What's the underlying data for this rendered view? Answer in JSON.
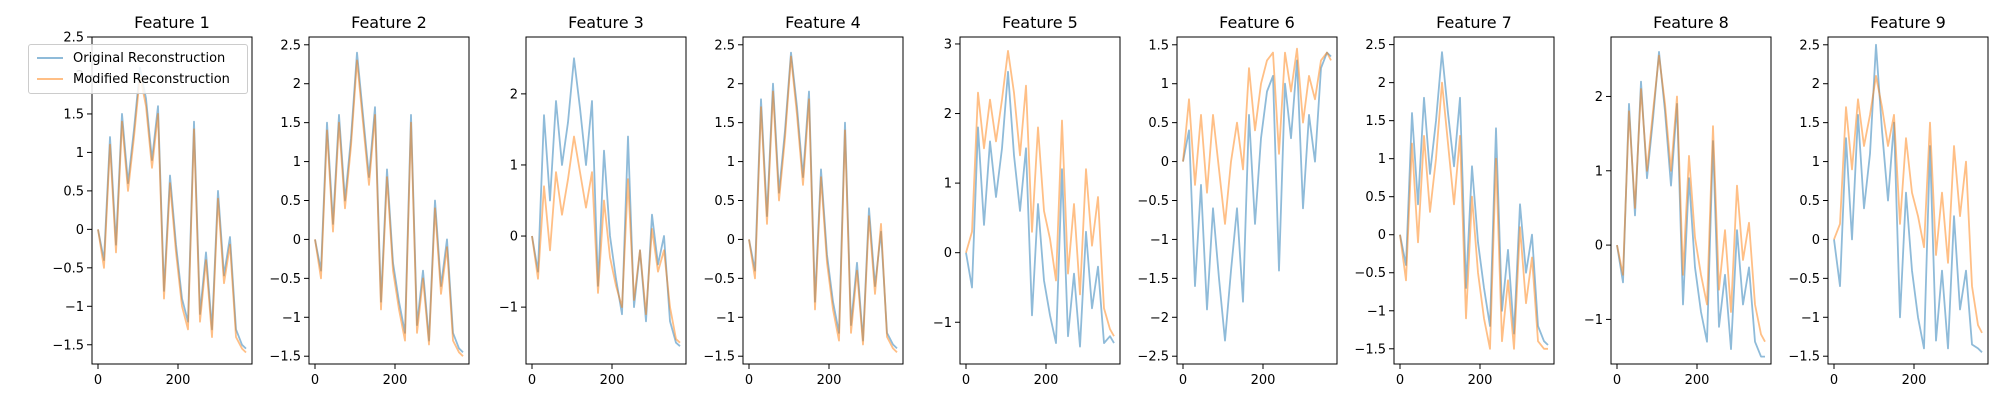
{
  "colors": {
    "original": "#1f77b4",
    "modified": "#ff7f0e",
    "line_alpha": 0.5
  },
  "legend": {
    "placement": "upper-left of first panel",
    "original_label": "Original Reconstruction",
    "modified_label": "Modified Reconstruction"
  },
  "chart_data": [
    {
      "type": "line",
      "title": "Feature 1",
      "xlabel": "",
      "ylabel": "",
      "xlim": [
        -15,
        385
      ],
      "ylim": [
        -1.75,
        2.5
      ],
      "xticks": [
        0,
        200
      ],
      "yticks": [
        -1.5,
        -1.0,
        -0.5,
        0.0,
        0.5,
        1.0,
        1.5,
        2.0,
        2.5
      ],
      "x": [
        0,
        15,
        30,
        45,
        60,
        75,
        90,
        105,
        120,
        135,
        150,
        165,
        180,
        195,
        210,
        225,
        240,
        255,
        270,
        285,
        300,
        315,
        330,
        345,
        360,
        370
      ],
      "series": [
        {
          "name": "Original Reconstruction",
          "values": [
            0.0,
            -0.4,
            1.2,
            -0.2,
            1.5,
            0.6,
            1.3,
            2.1,
            1.7,
            0.9,
            1.6,
            -0.8,
            0.7,
            -0.2,
            -0.9,
            -1.2,
            1.4,
            -1.1,
            -0.3,
            -1.3,
            0.5,
            -0.6,
            -0.1,
            -1.3,
            -1.5,
            -1.55
          ]
        },
        {
          "name": "Modified Reconstruction",
          "values": [
            0.0,
            -0.5,
            1.1,
            -0.3,
            1.4,
            0.5,
            1.2,
            2.0,
            1.6,
            0.8,
            1.5,
            -0.9,
            0.6,
            -0.3,
            -1.0,
            -1.3,
            1.3,
            -1.2,
            -0.4,
            -1.4,
            0.4,
            -0.7,
            -0.2,
            -1.4,
            -1.55,
            -1.6
          ]
        }
      ]
    },
    {
      "type": "line",
      "title": "Feature 2",
      "xlabel": "",
      "ylabel": "",
      "xlim": [
        -15,
        385
      ],
      "ylim": [
        -1.6,
        2.6
      ],
      "xticks": [
        0,
        200
      ],
      "yticks": [
        -1.5,
        -1.0,
        -0.5,
        0.0,
        0.5,
        1.0,
        1.5,
        2.0,
        2.5
      ],
      "x": [
        0,
        15,
        30,
        45,
        60,
        75,
        90,
        105,
        120,
        135,
        150,
        165,
        180,
        195,
        210,
        225,
        240,
        255,
        270,
        285,
        300,
        315,
        330,
        345,
        360,
        370
      ],
      "series": [
        {
          "name": "Original Reconstruction",
          "values": [
            0.0,
            -0.4,
            1.5,
            0.2,
            1.6,
            0.5,
            1.3,
            2.4,
            1.6,
            0.8,
            1.7,
            -0.8,
            0.9,
            -0.3,
            -0.8,
            -1.2,
            1.6,
            -1.1,
            -0.4,
            -1.3,
            0.5,
            -0.6,
            0.0,
            -1.2,
            -1.4,
            -1.45
          ]
        },
        {
          "name": "Modified Reconstruction",
          "values": [
            0.0,
            -0.5,
            1.4,
            0.1,
            1.5,
            0.4,
            1.2,
            2.3,
            1.5,
            0.7,
            1.6,
            -0.9,
            0.8,
            -0.4,
            -0.9,
            -1.3,
            1.5,
            -1.2,
            -0.5,
            -1.35,
            0.4,
            -0.7,
            -0.1,
            -1.3,
            -1.45,
            -1.5
          ]
        }
      ]
    },
    {
      "type": "line",
      "title": "Feature 3",
      "xlabel": "",
      "ylabel": "",
      "xlim": [
        -15,
        385
      ],
      "ylim": [
        -1.8,
        2.8
      ],
      "xticks": [
        0,
        200
      ],
      "yticks": [
        -1,
        0,
        1,
        2
      ],
      "x": [
        0,
        15,
        30,
        45,
        60,
        75,
        90,
        105,
        120,
        135,
        150,
        165,
        180,
        195,
        210,
        225,
        240,
        255,
        270,
        285,
        300,
        315,
        330,
        345,
        360,
        370
      ],
      "series": [
        {
          "name": "Original Reconstruction",
          "values": [
            0.0,
            -0.5,
            1.7,
            0.5,
            1.9,
            1.0,
            1.6,
            2.5,
            1.8,
            1.0,
            1.9,
            -0.7,
            1.2,
            0.0,
            -0.6,
            -1.1,
            1.4,
            -1.0,
            -0.2,
            -1.2,
            0.3,
            -0.4,
            0.0,
            -1.2,
            -1.5,
            -1.55
          ]
        },
        {
          "name": "Modified Reconstruction",
          "values": [
            0.0,
            -0.6,
            0.7,
            -0.2,
            0.9,
            0.3,
            0.8,
            1.4,
            0.9,
            0.4,
            0.9,
            -0.8,
            0.5,
            -0.3,
            -0.7,
            -1.0,
            0.8,
            -0.9,
            -0.2,
            -1.1,
            0.1,
            -0.5,
            -0.2,
            -1.0,
            -1.45,
            -1.5
          ]
        }
      ]
    },
    {
      "type": "line",
      "title": "Feature 4",
      "xlabel": "",
      "ylabel": "",
      "xlim": [
        -15,
        385
      ],
      "ylim": [
        -1.6,
        2.6
      ],
      "xticks": [
        0,
        200
      ],
      "yticks": [
        -1.5,
        -1.0,
        -0.5,
        0.0,
        0.5,
        1.0,
        1.5,
        2.0,
        2.5
      ],
      "x": [
        0,
        15,
        30,
        45,
        60,
        75,
        90,
        105,
        120,
        135,
        150,
        165,
        180,
        195,
        210,
        225,
        240,
        255,
        270,
        285,
        300,
        315,
        330,
        345,
        360,
        370
      ],
      "series": [
        {
          "name": "Original Reconstruction",
          "values": [
            0.0,
            -0.4,
            1.8,
            0.3,
            2.0,
            0.6,
            1.4,
            2.4,
            1.7,
            0.8,
            1.9,
            -0.8,
            0.9,
            -0.2,
            -0.8,
            -1.2,
            1.5,
            -1.1,
            -0.3,
            -1.3,
            0.4,
            -0.6,
            0.1,
            -1.2,
            -1.35,
            -1.4
          ]
        },
        {
          "name": "Modified Reconstruction",
          "values": [
            0.0,
            -0.5,
            1.7,
            0.2,
            1.9,
            0.5,
            1.3,
            2.35,
            1.6,
            0.7,
            1.8,
            -0.9,
            0.8,
            -0.3,
            -0.9,
            -1.3,
            1.4,
            -1.2,
            -0.4,
            -1.35,
            0.3,
            -0.7,
            0.2,
            -1.25,
            -1.4,
            -1.45
          ]
        }
      ]
    },
    {
      "type": "line",
      "title": "Feature 5",
      "xlabel": "",
      "ylabel": "",
      "xlim": [
        -15,
        385
      ],
      "ylim": [
        -1.6,
        3.1
      ],
      "xticks": [
        0,
        200
      ],
      "yticks": [
        -1,
        0,
        1,
        2,
        3
      ],
      "x": [
        0,
        15,
        30,
        45,
        60,
        75,
        90,
        105,
        120,
        135,
        150,
        165,
        180,
        195,
        210,
        225,
        240,
        255,
        270,
        285,
        300,
        315,
        330,
        345,
        360,
        370
      ],
      "series": [
        {
          "name": "Original Reconstruction",
          "values": [
            0.0,
            -0.5,
            1.8,
            0.4,
            1.6,
            0.8,
            1.5,
            2.6,
            1.4,
            0.6,
            1.5,
            -0.9,
            0.7,
            -0.4,
            -0.9,
            -1.3,
            1.2,
            -1.2,
            -0.3,
            -1.35,
            0.3,
            -0.8,
            -0.2,
            -1.3,
            -1.2,
            -1.3
          ]
        },
        {
          "name": "Modified Reconstruction",
          "values": [
            0.0,
            0.3,
            2.3,
            1.5,
            2.2,
            1.6,
            2.2,
            2.9,
            2.3,
            1.4,
            2.4,
            0.3,
            1.8,
            0.6,
            0.2,
            -0.4,
            1.9,
            -0.3,
            0.7,
            -0.6,
            1.2,
            0.1,
            0.8,
            -0.8,
            -1.1,
            -1.2
          ]
        }
      ]
    },
    {
      "type": "line",
      "title": "Feature 6",
      "xlabel": "",
      "ylabel": "",
      "xlim": [
        -15,
        385
      ],
      "ylim": [
        -2.6,
        1.6
      ],
      "xticks": [
        0,
        200
      ],
      "yticks": [
        -2.5,
        -2.0,
        -1.5,
        -1.0,
        -0.5,
        0.0,
        0.5,
        1.0,
        1.5
      ],
      "x": [
        0,
        15,
        30,
        45,
        60,
        75,
        90,
        105,
        120,
        135,
        150,
        165,
        180,
        195,
        210,
        225,
        240,
        255,
        270,
        285,
        300,
        315,
        330,
        345,
        360,
        370
      ],
      "series": [
        {
          "name": "Original Reconstruction",
          "values": [
            0.0,
            0.4,
            -1.6,
            -0.3,
            -1.9,
            -0.6,
            -1.5,
            -2.3,
            -1.4,
            -0.6,
            -1.8,
            0.6,
            -0.8,
            0.3,
            0.9,
            1.1,
            -1.4,
            1.0,
            0.3,
            1.3,
            -0.6,
            0.6,
            0.0,
            1.2,
            1.4,
            1.35
          ]
        },
        {
          "name": "Modified Reconstruction",
          "values": [
            0.0,
            0.8,
            -0.3,
            0.6,
            -0.4,
            0.6,
            -0.1,
            -0.8,
            0.0,
            0.5,
            -0.1,
            1.2,
            0.4,
            1.0,
            1.3,
            1.4,
            0.1,
            1.4,
            0.9,
            1.45,
            0.5,
            1.1,
            0.8,
            1.3,
            1.4,
            1.3
          ]
        }
      ]
    },
    {
      "type": "line",
      "title": "Feature 7",
      "xlabel": "",
      "ylabel": "",
      "xlim": [
        -15,
        385
      ],
      "ylim": [
        -1.7,
        2.6
      ],
      "xticks": [
        0,
        200
      ],
      "yticks": [
        -1.5,
        -1.0,
        -0.5,
        0.0,
        0.5,
        1.0,
        1.5,
        2.0,
        2.5
      ],
      "x": [
        0,
        15,
        30,
        45,
        60,
        75,
        90,
        105,
        120,
        135,
        150,
        165,
        180,
        195,
        210,
        225,
        240,
        255,
        270,
        285,
        300,
        315,
        330,
        345,
        360,
        370
      ],
      "series": [
        {
          "name": "Original Reconstruction",
          "values": [
            0.0,
            -0.4,
            1.6,
            0.4,
            1.8,
            0.8,
            1.5,
            2.4,
            1.6,
            0.9,
            1.8,
            -0.7,
            0.9,
            -0.1,
            -0.7,
            -1.2,
            1.4,
            -1.0,
            -0.2,
            -1.3,
            0.4,
            -0.5,
            0.0,
            -1.2,
            -1.4,
            -1.45
          ]
        },
        {
          "name": "Modified Reconstruction",
          "values": [
            0.0,
            -0.6,
            1.2,
            -0.1,
            1.3,
            0.3,
            1.0,
            2.0,
            1.2,
            0.4,
            1.3,
            -1.1,
            0.5,
            -0.5,
            -1.1,
            -1.5,
            1.0,
            -1.4,
            -0.6,
            -1.5,
            0.1,
            -0.9,
            -0.3,
            -1.4,
            -1.5,
            -1.5
          ]
        }
      ]
    },
    {
      "type": "line",
      "title": "Feature 8",
      "xlabel": "",
      "ylabel": "",
      "xlim": [
        -15,
        385
      ],
      "ylim": [
        -1.6,
        2.8
      ],
      "xticks": [
        0,
        200
      ],
      "yticks": [
        -1,
        0,
        1,
        2
      ],
      "x": [
        0,
        15,
        30,
        45,
        60,
        75,
        90,
        105,
        120,
        135,
        150,
        165,
        180,
        195,
        210,
        225,
        240,
        255,
        270,
        285,
        300,
        315,
        330,
        345,
        360,
        370
      ],
      "series": [
        {
          "name": "Original Reconstruction",
          "values": [
            0.0,
            -0.5,
            1.9,
            0.4,
            2.2,
            0.9,
            1.7,
            2.6,
            1.8,
            0.8,
            1.9,
            -0.8,
            0.9,
            -0.3,
            -0.9,
            -1.3,
            1.4,
            -1.1,
            -0.4,
            -1.4,
            0.2,
            -0.8,
            -0.3,
            -1.3,
            -1.5,
            -1.5
          ]
        },
        {
          "name": "Modified Reconstruction",
          "values": [
            0.0,
            -0.4,
            1.8,
            0.5,
            2.1,
            1.0,
            1.8,
            2.55,
            1.9,
            1.0,
            2.0,
            -0.4,
            1.2,
            0.1,
            -0.4,
            -0.8,
            1.6,
            -0.6,
            0.2,
            -0.9,
            0.8,
            -0.2,
            0.3,
            -0.8,
            -1.2,
            -1.3
          ]
        }
      ]
    },
    {
      "type": "line",
      "title": "Feature 9",
      "xlabel": "",
      "ylabel": "",
      "xlim": [
        -15,
        385
      ],
      "ylim": [
        -1.6,
        2.6
      ],
      "xticks": [
        0,
        200
      ],
      "yticks": [
        -1.5,
        -1.0,
        -0.5,
        0.0,
        0.5,
        1.0,
        1.5,
        2.0,
        2.5
      ],
      "x": [
        0,
        15,
        30,
        45,
        60,
        75,
        90,
        105,
        120,
        135,
        150,
        165,
        180,
        195,
        210,
        225,
        240,
        255,
        270,
        285,
        300,
        315,
        330,
        345,
        360,
        370
      ],
      "series": [
        {
          "name": "Original Reconstruction",
          "values": [
            0.0,
            -0.6,
            1.3,
            0.0,
            1.6,
            0.4,
            1.1,
            2.5,
            1.4,
            0.5,
            1.5,
            -1.0,
            0.6,
            -0.4,
            -1.0,
            -1.4,
            1.2,
            -1.3,
            -0.4,
            -1.4,
            0.3,
            -0.9,
            -0.4,
            -1.35,
            -1.4,
            -1.45
          ]
        },
        {
          "name": "Modified Reconstruction",
          "values": [
            0.0,
            0.2,
            1.7,
            0.9,
            1.8,
            1.2,
            1.6,
            2.1,
            1.7,
            1.2,
            1.6,
            0.2,
            1.3,
            0.6,
            0.3,
            -0.1,
            1.5,
            -0.2,
            0.6,
            -0.3,
            1.2,
            0.3,
            1.0,
            -0.6,
            -1.1,
            -1.2
          ]
        }
      ]
    }
  ]
}
